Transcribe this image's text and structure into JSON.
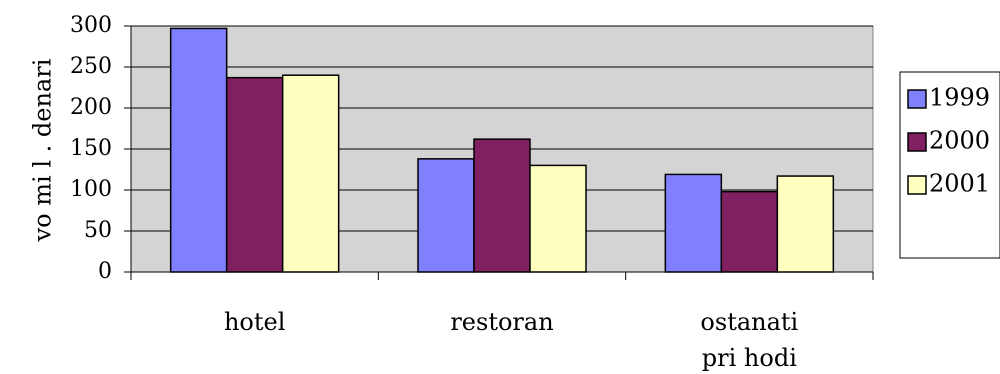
{
  "chart_data": {
    "type": "bar",
    "categories": [
      [
        "hotel"
      ],
      [
        "restoran"
      ],
      [
        "ostanati",
        "pri hodi"
      ]
    ],
    "ylabel": "vo mi l . denari",
    "ylim": [
      0,
      300
    ],
    "yticks": [
      0,
      50,
      100,
      150,
      200,
      250,
      300
    ],
    "grid": true,
    "legend_position": "right",
    "plot_background": "#d4d4d4",
    "series": [
      {
        "name": "1999",
        "color": "#8080ff",
        "values": [
          297,
          138,
          119
        ]
      },
      {
        "name": "2000",
        "color": "#802060",
        "values": [
          237,
          162,
          98
        ]
      },
      {
        "name": "2001",
        "color": "#ffffc0",
        "values": [
          240,
          130,
          117
        ]
      }
    ]
  }
}
